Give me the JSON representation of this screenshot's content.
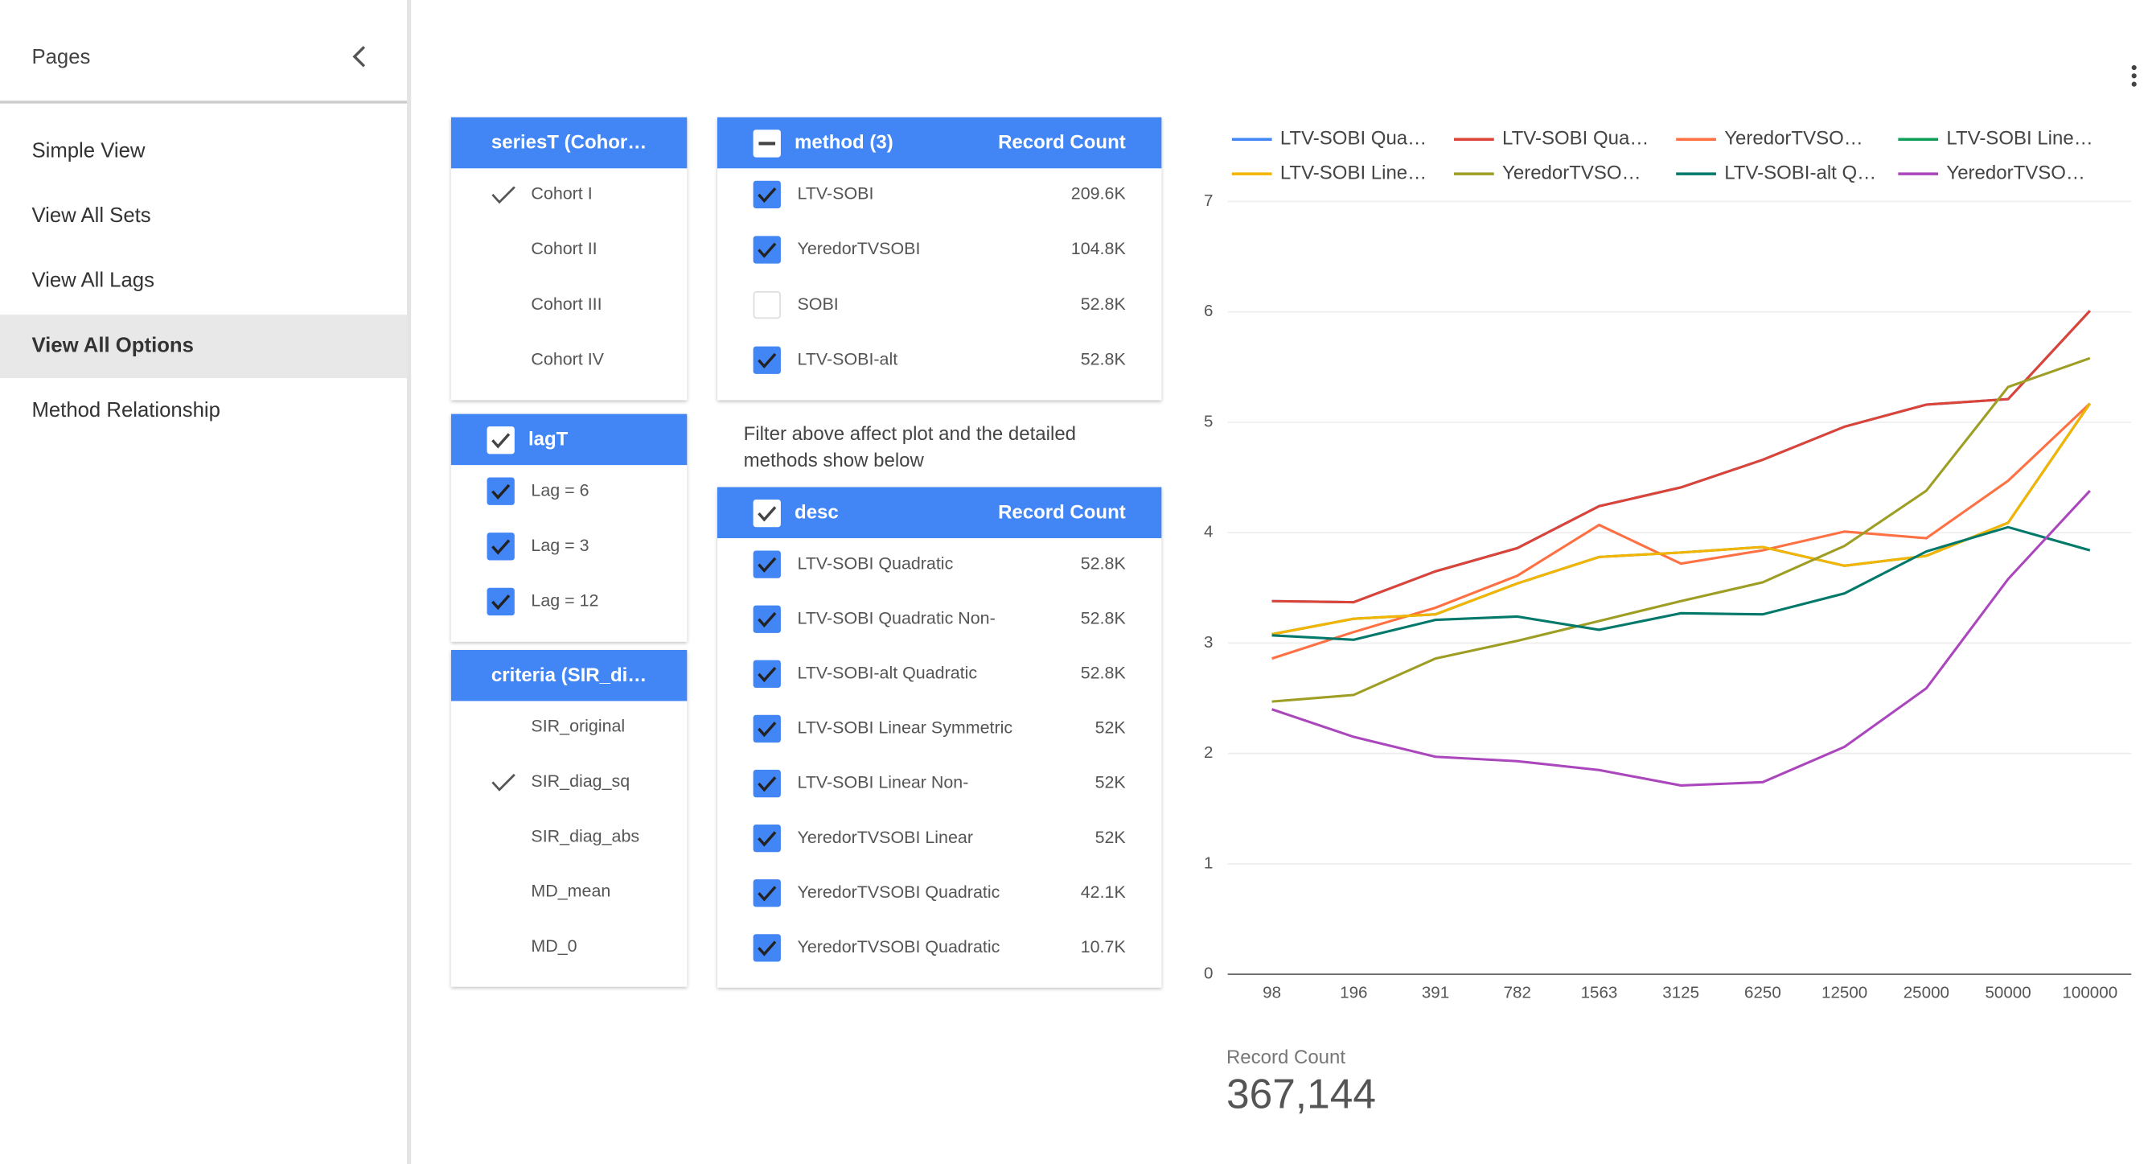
{
  "sidebar": {
    "title": "Pages",
    "items": [
      "Simple View",
      "View All Sets",
      "View All Lags",
      "View All Options",
      "Method Relationship"
    ],
    "active": 3
  },
  "filters": {
    "series": {
      "title": "seriesT (Cohor…",
      "style": "single",
      "items": [
        {
          "label": "Cohort I",
          "checked": true
        },
        {
          "label": "Cohort II",
          "checked": false
        },
        {
          "label": "Cohort III",
          "checked": false
        },
        {
          "label": "Cohort IV",
          "checked": false
        }
      ]
    },
    "lag": {
      "title": "lagT",
      "style": "multi",
      "header_state": "checked",
      "items": [
        {
          "label": "Lag = 6",
          "checked": true
        },
        {
          "label": "Lag = 3",
          "checked": true
        },
        {
          "label": "Lag = 12",
          "checked": true
        }
      ]
    },
    "criteria": {
      "title": "criteria (SIR_di…",
      "style": "single",
      "items": [
        {
          "label": "SIR_original",
          "checked": false
        },
        {
          "label": "SIR_diag_sq",
          "checked": true
        },
        {
          "label": "SIR_diag_abs",
          "checked": false
        },
        {
          "label": "MD_mean",
          "checked": false
        },
        {
          "label": "MD_0",
          "checked": false
        }
      ]
    },
    "method": {
      "title": "method (3)",
      "metric": "Record Count",
      "header_state": "indeterminate",
      "items": [
        {
          "label": "LTV-SOBI",
          "count": "209.6K",
          "checked": true
        },
        {
          "label": "YeredorTVSOBI",
          "count": "104.8K",
          "checked": true
        },
        {
          "label": "SOBI",
          "count": "52.8K",
          "checked": false
        },
        {
          "label": "LTV-SOBI-alt",
          "count": "52.8K",
          "checked": true
        }
      ]
    },
    "note": "Filter above affect plot and the detailed methods show below",
    "desc": {
      "title": "desc",
      "metric": "Record Count",
      "header_state": "checked",
      "items": [
        {
          "label": "LTV-SOBI Quadratic",
          "count": "52.8K",
          "checked": true
        },
        {
          "label": "LTV-SOBI Quadratic Non-",
          "count": "52.8K",
          "checked": true
        },
        {
          "label": "LTV-SOBI-alt Quadratic",
          "count": "52.8K",
          "checked": true
        },
        {
          "label": "LTV-SOBI Linear Symmetric",
          "count": "52K",
          "checked": true
        },
        {
          "label": "LTV-SOBI Linear Non-",
          "count": "52K",
          "checked": true
        },
        {
          "label": "YeredorTVSOBI Linear",
          "count": "52K",
          "checked": true
        },
        {
          "label": "YeredorTVSOBI Quadratic",
          "count": "42.1K",
          "checked": true
        },
        {
          "label": "YeredorTVSOBI Quadratic",
          "count": "10.7K",
          "checked": true
        }
      ]
    }
  },
  "chart_data": {
    "type": "line",
    "categories": [
      "98",
      "196",
      "391",
      "782",
      "1563",
      "3125",
      "6250",
      "12500",
      "25000",
      "50000",
      "100000"
    ],
    "ylim": [
      0,
      7
    ],
    "yticks": [
      0,
      1,
      2,
      3,
      4,
      5,
      6,
      7
    ],
    "grid": true,
    "legend": "top",
    "series": [
      {
        "name": "LTV-SOBI Qua…",
        "color": "#4285f4",
        "values": [
          3.38,
          3.37,
          3.65,
          3.86,
          4.24,
          4.41,
          4.66,
          4.96,
          5.16,
          5.21,
          6.01
        ]
      },
      {
        "name": "LTV-SOBI Qua…",
        "color": "#db4437",
        "values": [
          3.38,
          3.37,
          3.65,
          3.86,
          4.24,
          4.41,
          4.66,
          4.96,
          5.16,
          5.21,
          6.01
        ]
      },
      {
        "name": "YeredorTVSO…",
        "color": "#ff7043",
        "values": [
          2.86,
          3.1,
          3.32,
          3.61,
          4.07,
          3.72,
          3.84,
          4.01,
          3.95,
          4.47,
          5.17
        ]
      },
      {
        "name": "LTV-SOBI Line…",
        "color": "#0f9d58",
        "values": [
          3.08,
          3.22,
          3.26,
          3.54,
          3.78,
          3.82,
          3.87,
          3.7,
          3.79,
          4.09,
          5.17
        ]
      },
      {
        "name": "LTV-SOBI Line…",
        "color": "#f4b400",
        "values": [
          3.08,
          3.22,
          3.26,
          3.54,
          3.78,
          3.82,
          3.87,
          3.7,
          3.79,
          4.09,
          5.17
        ]
      },
      {
        "name": "YeredorTVSO…",
        "color": "#9e9d24",
        "values": [
          2.47,
          2.53,
          2.86,
          3.02,
          3.2,
          3.38,
          3.55,
          3.88,
          4.38,
          5.32,
          5.58
        ]
      },
      {
        "name": "LTV-SOBI-alt Q…",
        "color": "#00796b",
        "values": [
          3.07,
          3.03,
          3.21,
          3.24,
          3.12,
          3.27,
          3.26,
          3.45,
          3.83,
          4.05,
          3.84
        ]
      },
      {
        "name": "YeredorTVSO…",
        "color": "#ab47bc",
        "values": [
          2.4,
          2.15,
          1.97,
          1.93,
          1.85,
          1.71,
          1.74,
          2.06,
          2.59,
          3.58,
          4.38
        ]
      }
    ]
  },
  "scorecard": {
    "label": "Record Count",
    "value": "367,144"
  }
}
